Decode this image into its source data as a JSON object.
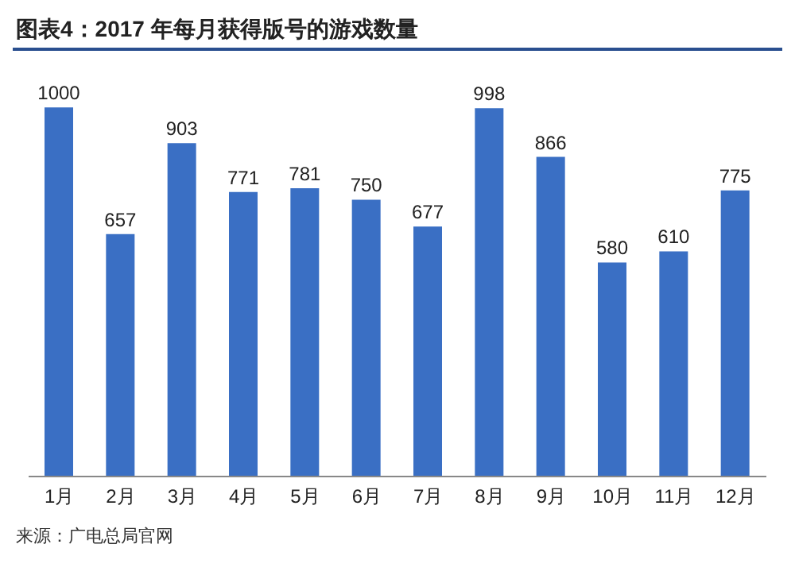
{
  "chart_data": {
    "type": "bar",
    "title": "图表4：2017 年每月获得版号的游戏数量",
    "categories": [
      "1月",
      "2月",
      "3月",
      "4月",
      "5月",
      "6月",
      "7月",
      "8月",
      "9月",
      "10月",
      "11月",
      "12月"
    ],
    "values": [
      1000,
      657,
      903,
      771,
      781,
      750,
      677,
      998,
      866,
      580,
      610,
      775
    ],
    "color": "#3a6fc4",
    "data_labels": true,
    "annotations": [
      "来源：广电总局官网"
    ]
  }
}
